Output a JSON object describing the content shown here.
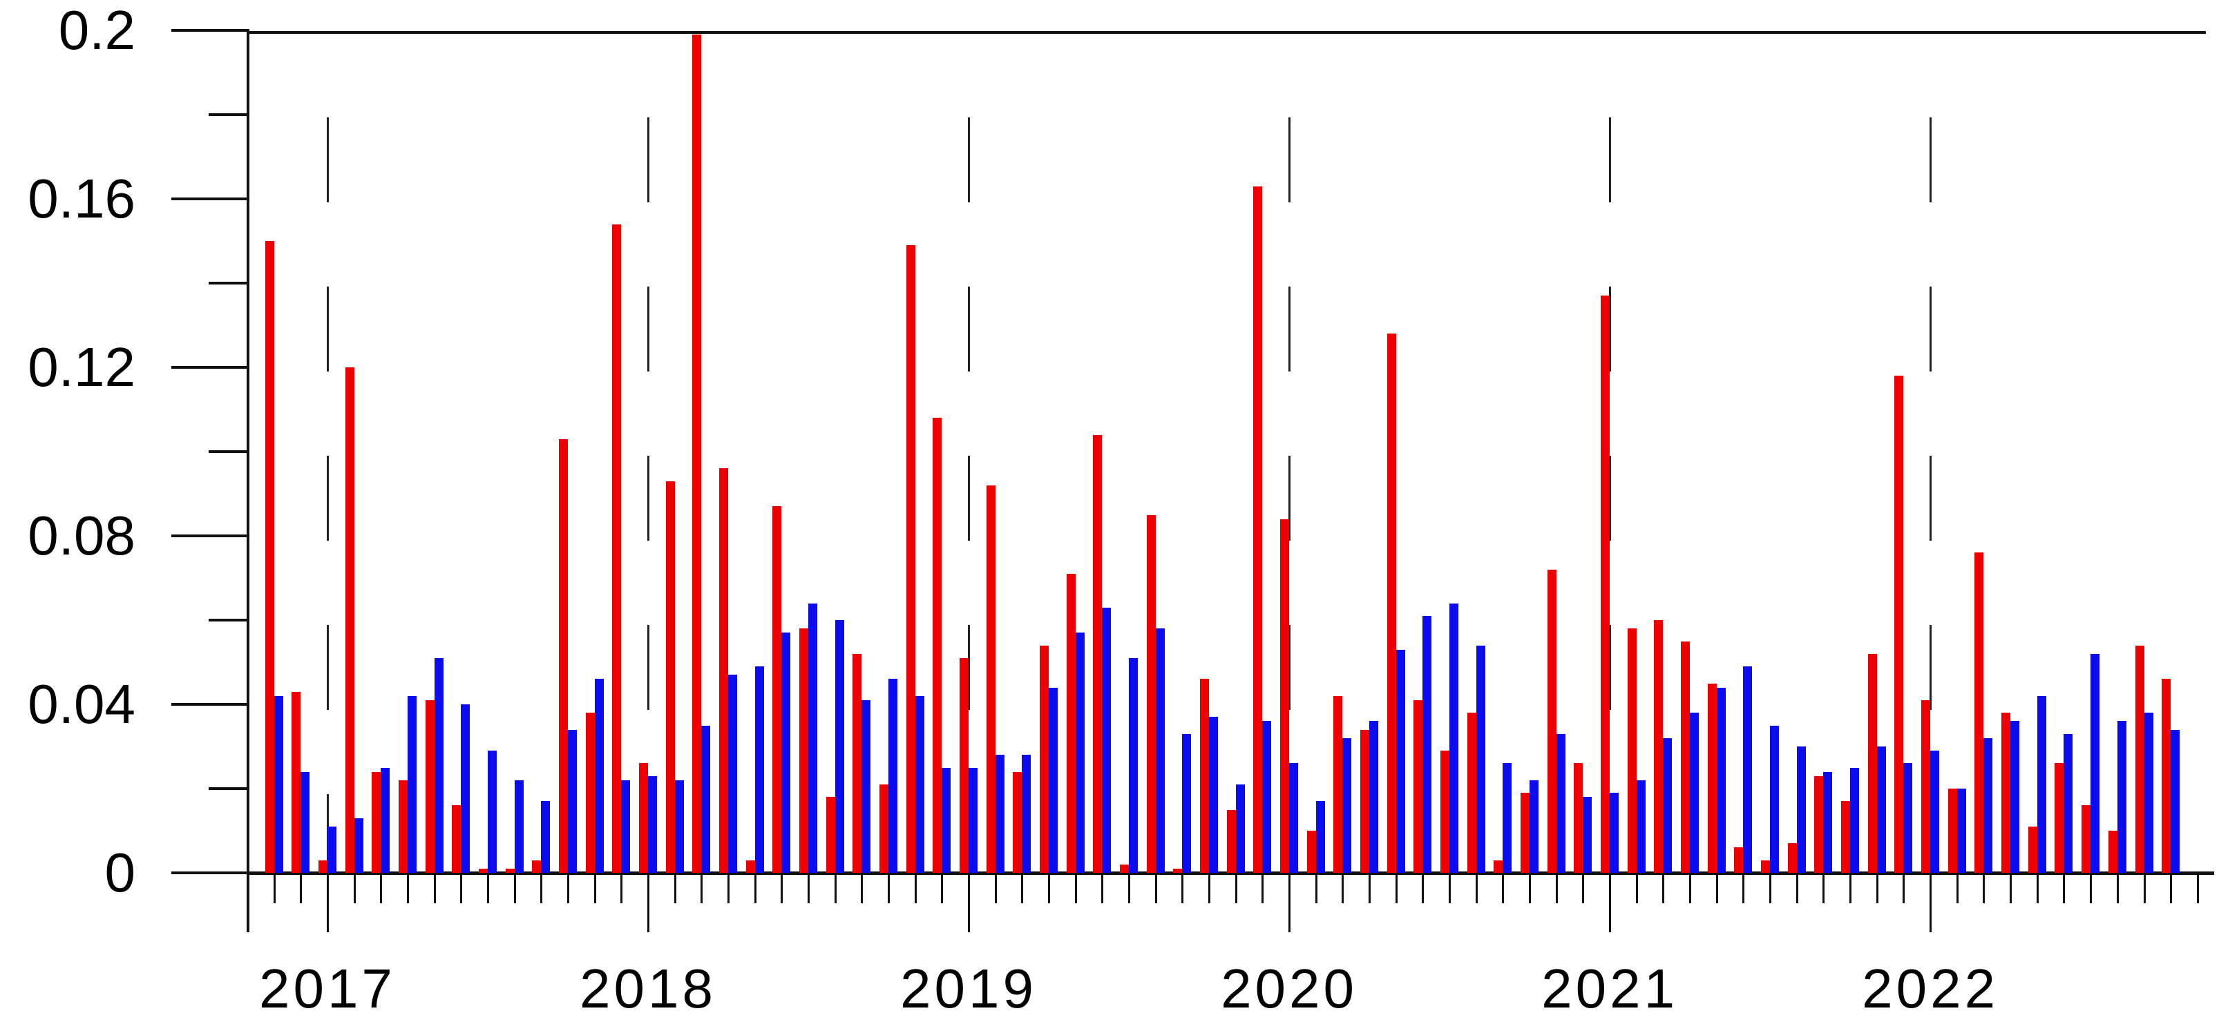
{
  "chart_data": {
    "type": "bar",
    "title": "",
    "xlabel": "",
    "ylabel": "",
    "ylim": [
      0,
      0.2
    ],
    "y_ticks": [
      0,
      0.04,
      0.08,
      0.12,
      0.16,
      0.2
    ],
    "y_tick_labels": [
      "0",
      "0.04",
      "0.08",
      "0.12",
      "0.16",
      "0.2"
    ],
    "y_minor_ticks": [
      0.02,
      0.06,
      0.1,
      0.14,
      0.18
    ],
    "grid": "dashed vertical line at January of each year",
    "legend_position": "none",
    "x_year_labels": [
      "2017",
      "2018",
      "2019",
      "2020",
      "2021",
      "2022"
    ],
    "january_month_indices": [
      2,
      14,
      26,
      38,
      50,
      62
    ],
    "categories": [
      "2016-11",
      "2016-12",
      "2017-01",
      "2017-02",
      "2017-03",
      "2017-04",
      "2017-05",
      "2017-06",
      "2017-07",
      "2017-08",
      "2017-09",
      "2017-10",
      "2017-11",
      "2017-12",
      "2018-01",
      "2018-02",
      "2018-03",
      "2018-04",
      "2018-05",
      "2018-06",
      "2018-07",
      "2018-08",
      "2018-09",
      "2018-10",
      "2018-11",
      "2018-12",
      "2019-01",
      "2019-02",
      "2019-03",
      "2019-04",
      "2019-05",
      "2019-06",
      "2019-07",
      "2019-08",
      "2019-09",
      "2019-10",
      "2019-11",
      "2019-12",
      "2020-01",
      "2020-02",
      "2020-03",
      "2020-04",
      "2020-05",
      "2020-06",
      "2020-07",
      "2020-08",
      "2020-09",
      "2020-10",
      "2020-11",
      "2020-12",
      "2021-01",
      "2021-02",
      "2021-03",
      "2021-04",
      "2021-05",
      "2021-06",
      "2021-07",
      "2021-08",
      "2021-09",
      "2021-10",
      "2021-11",
      "2021-12",
      "2022-01",
      "2022-02",
      "2022-03",
      "2022-04",
      "2022-05",
      "2022-06",
      "2022-07",
      "2022-08",
      "2022-09",
      "2022-10"
    ],
    "series": [
      {
        "name": "red-series",
        "color": "#ee0000",
        "values": [
          0.15,
          0.043,
          0.003,
          0.12,
          0.024,
          0.022,
          0.041,
          0.016,
          0.001,
          0.001,
          0.003,
          0.103,
          0.038,
          0.154,
          0.026,
          0.093,
          0.199,
          0.096,
          0.003,
          0.087,
          0.058,
          0.018,
          0.052,
          0.021,
          0.149,
          0.108,
          0.051,
          0.092,
          0.024,
          0.054,
          0.071,
          0.104,
          0.002,
          0.085,
          0.001,
          0.046,
          0.015,
          0.163,
          0.084,
          0.01,
          0.042,
          0.034,
          0.128,
          0.041,
          0.029,
          0.038,
          0.003,
          0.019,
          0.072,
          0.026,
          0.137,
          0.058,
          0.06,
          0.055,
          0.045,
          0.006,
          0.003,
          0.007,
          0.023,
          0.017,
          0.052,
          0.118,
          0.041,
          0.02,
          0.076,
          0.038,
          0.011,
          0.026,
          0.016,
          0.01,
          0.054,
          0.046
        ]
      },
      {
        "name": "blue-series",
        "color": "#0b0bf0",
        "values": [
          0.042,
          0.024,
          0.011,
          0.013,
          0.025,
          0.042,
          0.051,
          0.04,
          0.029,
          0.022,
          0.017,
          0.034,
          0.046,
          0.022,
          0.023,
          0.022,
          0.035,
          0.047,
          0.049,
          0.057,
          0.064,
          0.06,
          0.041,
          0.046,
          0.042,
          0.025,
          0.025,
          0.028,
          0.028,
          0.044,
          0.057,
          0.063,
          0.051,
          0.058,
          0.033,
          0.037,
          0.021,
          0.036,
          0.026,
          0.017,
          0.032,
          0.036,
          0.053,
          0.061,
          0.064,
          0.054,
          0.026,
          0.022,
          0.033,
          0.018,
          0.019,
          0.022,
          0.032,
          0.038,
          0.044,
          0.049,
          0.035,
          0.03,
          0.024,
          0.025,
          0.03,
          0.026,
          0.029,
          0.02,
          0.032,
          0.036,
          0.042,
          0.033,
          0.052,
          0.036,
          0.038,
          0.034
        ]
      }
    ],
    "axis_color": "#111111"
  }
}
